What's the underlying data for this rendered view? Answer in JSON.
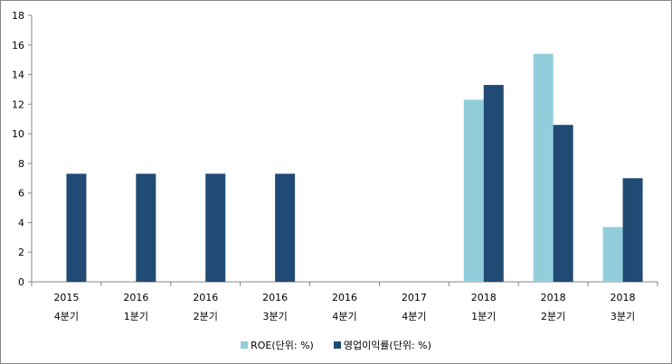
{
  "chart_data": {
    "type": "bar",
    "title": "",
    "xlabel": "",
    "ylabel": "",
    "ylim": [
      0,
      18
    ],
    "yticks": [
      0,
      2,
      4,
      6,
      8,
      10,
      12,
      14,
      16,
      18
    ],
    "categories": [
      [
        "2015",
        "4분기"
      ],
      [
        "2016",
        "1분기"
      ],
      [
        "2016",
        "2분기"
      ],
      [
        "2016",
        "3분기"
      ],
      [
        "2016",
        "4분기"
      ],
      [
        "2017",
        "4분기"
      ],
      [
        "2018",
        "1분기"
      ],
      [
        "2018",
        "2분기"
      ],
      [
        "2018",
        "3분기"
      ]
    ],
    "series": [
      {
        "name": "ROE(단위: %)",
        "color": "#92CDDC",
        "values": [
          null,
          null,
          null,
          null,
          null,
          null,
          12.3,
          15.4,
          3.7
        ]
      },
      {
        "name": "영업이익률(단위: %)",
        "color": "#214B74",
        "values": [
          7.3,
          7.3,
          7.3,
          7.3,
          null,
          null,
          13.3,
          10.6,
          7.0
        ]
      }
    ],
    "legend_position": "bottom",
    "grid": false
  }
}
